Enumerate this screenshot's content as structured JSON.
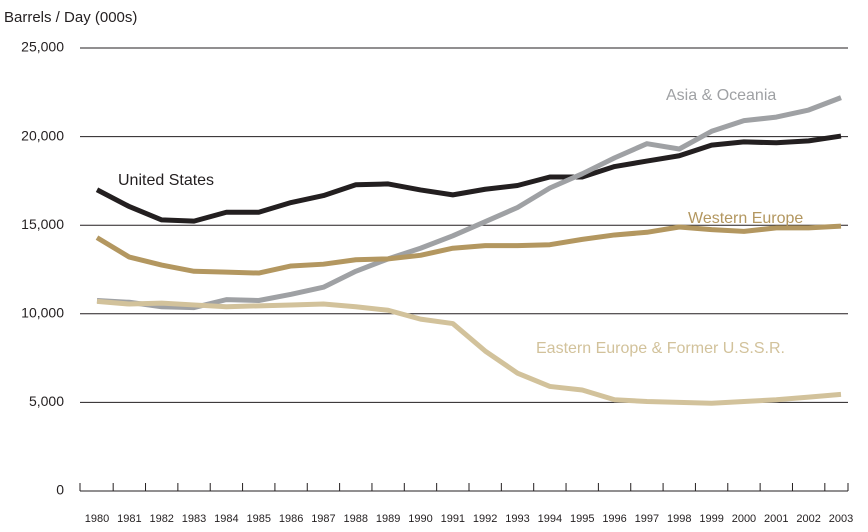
{
  "chart_data": {
    "type": "line",
    "y_label": "Barrels / Day (000s)",
    "categories": [
      "1980",
      "1981",
      "1982",
      "1983",
      "1984",
      "1985",
      "1986",
      "1987",
      "1988",
      "1989",
      "1990",
      "1991",
      "1992",
      "1993",
      "1994",
      "1995",
      "1996",
      "1997",
      "1998",
      "1999",
      "2000",
      "2001",
      "2002",
      "2003"
    ],
    "ylim": [
      0,
      25000
    ],
    "yticks": [
      0,
      {
        "value": 5000,
        "label": "5,000"
      },
      {
        "value": 10000,
        "label": "10,000"
      },
      {
        "value": 15000,
        "label": "15,000"
      },
      {
        "value": 20000,
        "label": "20,000"
      },
      {
        "value": 25000,
        "label": "25,000"
      }
    ],
    "grid": true,
    "series": [
      {
        "name": "United States",
        "color": "#231f20",
        "values": [
          17000,
          16050,
          15300,
          15230,
          15730,
          15730,
          16280,
          16670,
          17280,
          17330,
          16990,
          16710,
          17030,
          17240,
          17720,
          17720,
          18310,
          18620,
          18920,
          19520,
          19700,
          19650,
          19760,
          20030
        ]
      },
      {
        "name": "Asia & Oceania",
        "color": "#9fa1a4",
        "values": [
          10750,
          10650,
          10400,
          10350,
          10800,
          10750,
          11100,
          11500,
          12400,
          13100,
          13700,
          14400,
          15200,
          16000,
          17100,
          17900,
          18800,
          19600,
          19300,
          20300,
          20900,
          21100,
          21500,
          22200
        ]
      },
      {
        "name": "Western Europe",
        "color": "#b39760",
        "values": [
          14300,
          13200,
          12750,
          12400,
          12350,
          12300,
          12700,
          12800,
          13050,
          13100,
          13300,
          13700,
          13850,
          13850,
          13900,
          14200,
          14450,
          14600,
          14900,
          14750,
          14650,
          14850,
          14850,
          14950
        ]
      },
      {
        "name": "Eastern Europe & Former U.S.S.R.",
        "color": "#d2c29b",
        "values": [
          10700,
          10550,
          10600,
          10500,
          10400,
          10450,
          10500,
          10550,
          10400,
          10200,
          9700,
          9450,
          7900,
          6650,
          5900,
          5700,
          5150,
          5050,
          5000,
          4950,
          5050,
          5150,
          5300,
          5450
        ]
      }
    ]
  }
}
